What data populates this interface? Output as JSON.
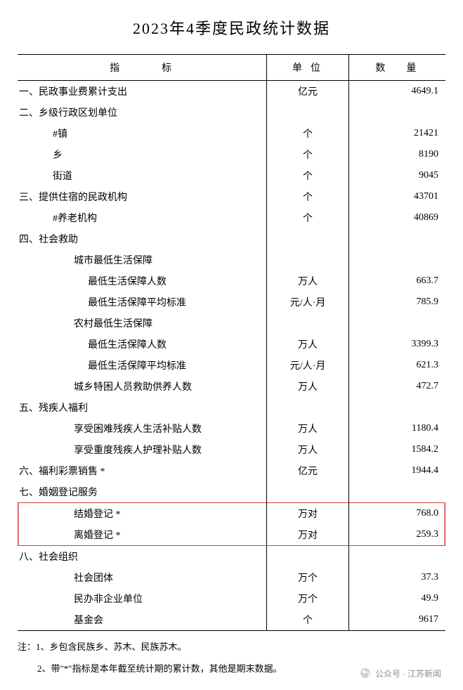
{
  "title": "2023年4季度民政统计数据",
  "header": {
    "indicator": "指标",
    "unit": "单位",
    "value": "数量"
  },
  "rows": [
    {
      "label": "一、民政事业费累计支出",
      "indent": 0,
      "unit": "亿元",
      "value": "4649.1"
    },
    {
      "label": "二、乡级行政区划单位",
      "indent": 0,
      "unit": "",
      "value": ""
    },
    {
      "label": "#镇",
      "indent": 1,
      "unit": "个",
      "value": "21421"
    },
    {
      "label": "乡",
      "indent": 1,
      "unit": "个",
      "value": "8190"
    },
    {
      "label": "街道",
      "indent": 1,
      "unit": "个",
      "value": "9045"
    },
    {
      "label": "三、提供住宿的民政机构",
      "indent": 0,
      "unit": "个",
      "value": "43701"
    },
    {
      "label": "#养老机构",
      "indent": 1,
      "unit": "个",
      "value": "40869"
    },
    {
      "label": "四、社会救助",
      "indent": 0,
      "unit": "",
      "value": ""
    },
    {
      "label": "城市最低生活保障",
      "indent": 2,
      "unit": "",
      "value": ""
    },
    {
      "label": "最低生活保障人数",
      "indent": 3,
      "unit": "万人",
      "value": "663.7"
    },
    {
      "label": "最低生活保障平均标准",
      "indent": 3,
      "unit": "元/人·月",
      "value": "785.9"
    },
    {
      "label": "农村最低生活保障",
      "indent": 2,
      "unit": "",
      "value": ""
    },
    {
      "label": "最低生活保障人数",
      "indent": 3,
      "unit": "万人",
      "value": "3399.3"
    },
    {
      "label": "最低生活保障平均标准",
      "indent": 3,
      "unit": "元/人·月",
      "value": "621.3"
    },
    {
      "label": "城乡特困人员救助供养人数",
      "indent": 2,
      "unit": "万人",
      "value": "472.7"
    },
    {
      "label": "五、残疾人福利",
      "indent": 0,
      "unit": "",
      "value": ""
    },
    {
      "label": "享受困难残疾人生活补贴人数",
      "indent": 2,
      "unit": "万人",
      "value": "1180.4"
    },
    {
      "label": "享受重度残疾人护理补贴人数",
      "indent": 2,
      "unit": "万人",
      "value": "1584.2"
    },
    {
      "label": "六、福利彩票销售 *",
      "indent": 0,
      "unit": "亿元",
      "value": "1944.4"
    },
    {
      "label": "七、婚姻登记服务",
      "indent": 0,
      "unit": "",
      "value": ""
    },
    {
      "label": "结婚登记 *",
      "indent": 2,
      "unit": "万对",
      "value": "768.0",
      "hl": "top"
    },
    {
      "label": "离婚登记 *",
      "indent": 2,
      "unit": "万对",
      "value": "259.3",
      "hl": "bot"
    },
    {
      "label": "八、社会组织",
      "indent": 0,
      "unit": "",
      "value": ""
    },
    {
      "label": "社会团体",
      "indent": 2,
      "unit": "万个",
      "value": "37.3"
    },
    {
      "label": "民办非企业单位",
      "indent": 2,
      "unit": "万个",
      "value": "49.9"
    },
    {
      "label": "基金会",
      "indent": 2,
      "unit": "个",
      "value": "9617"
    }
  ],
  "notes": {
    "n1": "注：1、乡包含民族乡、苏木、民族苏木。",
    "n2": "2、带\"*\"指标是本年截至统计期的累计数，其他是期末数据。"
  },
  "attribution": {
    "label": "公众号",
    "name": "江苏新闻"
  },
  "style": {
    "highlight_color": "#e03a3a",
    "text_color": "#000000",
    "attr_color": "#8a8f99"
  }
}
